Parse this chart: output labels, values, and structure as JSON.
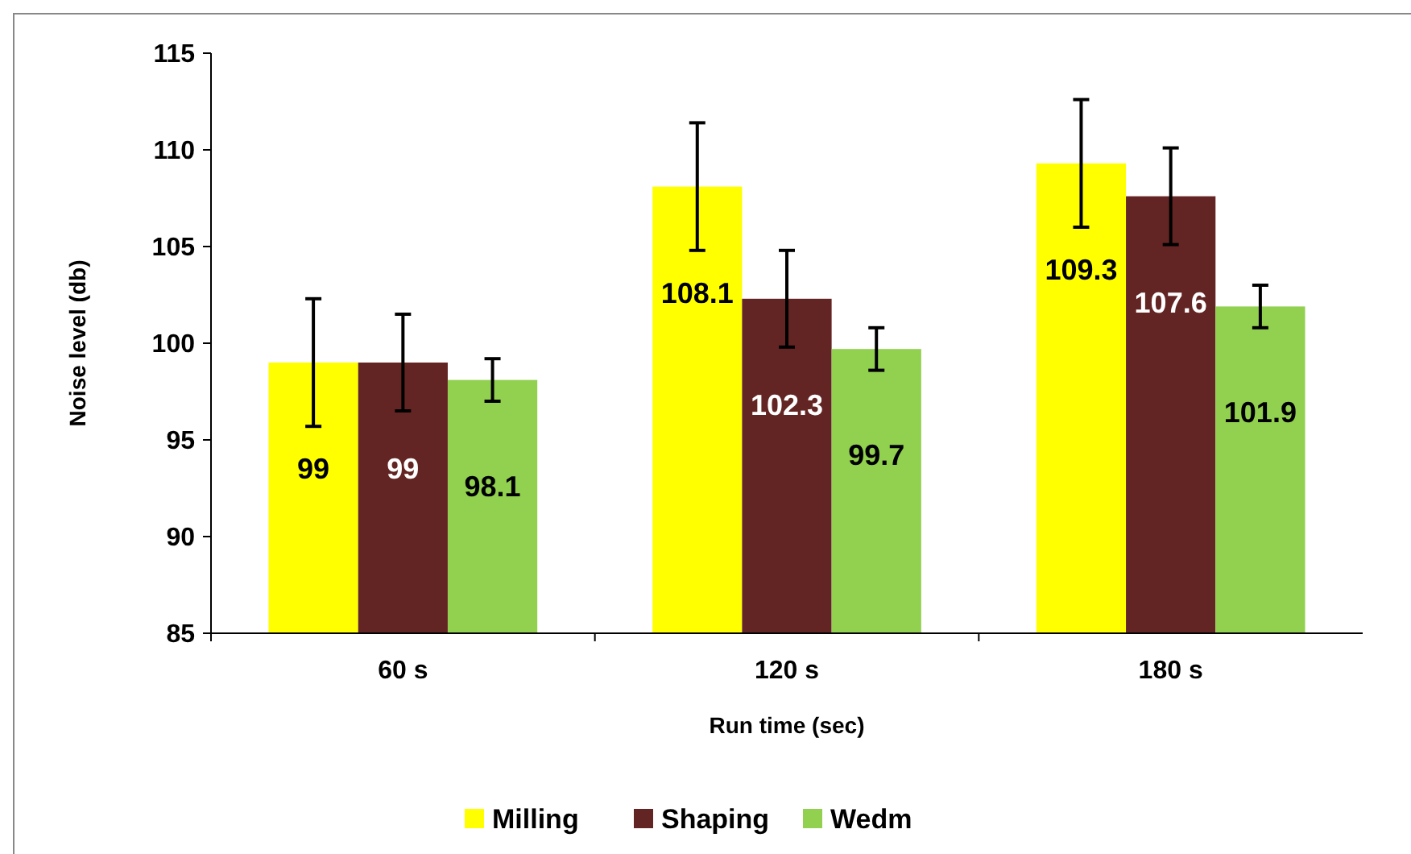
{
  "chart_data": {
    "type": "bar",
    "xlabel": "Run time (sec)",
    "ylabel": "Noise level (db)",
    "categories": [
      "60 s",
      "120 s",
      "180 s"
    ],
    "series": [
      {
        "name": "Milling",
        "color": "#ffff00",
        "values": [
          99,
          108.1,
          109.3
        ],
        "errors": [
          3.3,
          3.3,
          3.3
        ]
      },
      {
        "name": "Shaping",
        "color": "#632523",
        "values": [
          99,
          102.3,
          107.6
        ],
        "errors": [
          2.5,
          2.5,
          2.5
        ]
      },
      {
        "name": "Wedm",
        "color": "#92d050",
        "values": [
          98.1,
          99.7,
          101.9
        ],
        "errors": [
          1.1,
          1.1,
          1.1
        ]
      }
    ],
    "ylim": [
      85,
      115
    ],
    "yticks": [
      85,
      90,
      95,
      100,
      105,
      110,
      115
    ],
    "grid": false,
    "legend": "bottom",
    "data_labels": true
  }
}
